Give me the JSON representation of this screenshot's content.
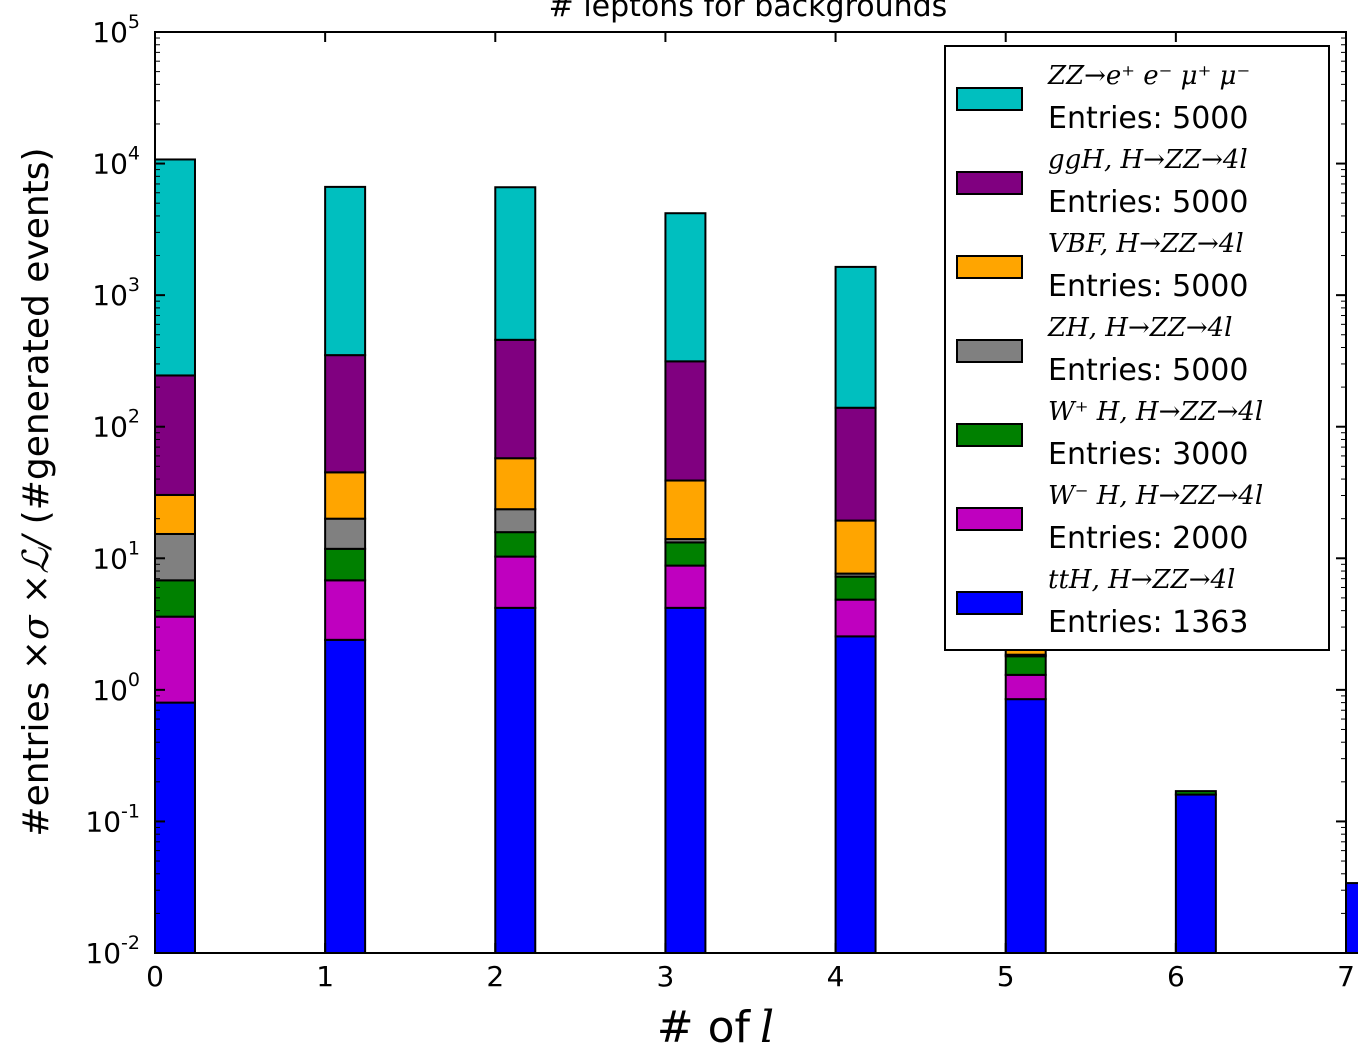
{
  "chart_data": {
    "type": "bar",
    "stacked": true,
    "title": "# leptons for backgrounds",
    "xlabel_prefix": "# of",
    "xlabel_symbol": "l",
    "ylabel_left": "#entries",
    "ylabel_middle": "×σ ×ℒ/",
    "ylabel_right": "(#generated events)",
    "yscale": "log",
    "ylim": [
      0.01,
      100000
    ],
    "xlim": [
      0,
      7
    ],
    "x_ticks": [
      "0",
      "1",
      "2",
      "3",
      "4",
      "5",
      "6",
      "7"
    ],
    "y_ticks": [
      {
        "base": "10",
        "exp": "5"
      },
      {
        "base": "10",
        "exp": "4"
      },
      {
        "base": "10",
        "exp": "3"
      },
      {
        "base": "10",
        "exp": "2"
      },
      {
        "base": "10",
        "exp": "1"
      },
      {
        "base": "10",
        "exp": "0"
      },
      {
        "base": "10",
        "exp": "-1"
      },
      {
        "base": "10",
        "exp": "-2"
      }
    ],
    "categories": [
      0,
      1,
      2,
      3,
      4,
      5,
      6,
      7
    ],
    "legend_position": "upper-right",
    "series": [
      {
        "name": "ttH, H→ZZ→4l",
        "entries": "Entries: 1363",
        "color": "#0000ff",
        "values": [
          0.8,
          2.4,
          4.2,
          4.2,
          2.55,
          0.85,
          0.16,
          0.034
        ]
      },
      {
        "name": "W⁻ H, H→ZZ→4l",
        "entries": "Entries: 2000",
        "color": "#bf00bf",
        "values": [
          2.8,
          4.4,
          6.1,
          4.6,
          2.3,
          0.45,
          0,
          0
        ]
      },
      {
        "name": "W⁺ H, H→ZZ→4l",
        "entries": "Entries: 3000",
        "color": "#008000",
        "values": [
          3.2,
          5.0,
          5.5,
          4.4,
          2.4,
          0.5,
          0.01,
          0
        ]
      },
      {
        "name": "ZH, H→ZZ→4l",
        "entries": "Entries: 5000",
        "color": "#808080",
        "values": [
          8.5,
          8.2,
          7.8,
          0.8,
          0.4,
          0.05,
          0,
          0
        ]
      },
      {
        "name": "VBF, H→ZZ→4l",
        "entries": "Entries: 5000",
        "color": "#ffa500",
        "values": [
          15.0,
          25.0,
          34.0,
          25.0,
          11.7,
          0.3,
          0,
          0
        ]
      },
      {
        "name": "ggH, H→ZZ→4l",
        "entries": "Entries: 5000",
        "color": "#800080",
        "values": [
          215,
          305,
          400,
          275,
          120,
          0,
          0,
          0
        ]
      },
      {
        "name": "ZZ→e⁺e⁻ μ⁺μ⁻",
        "entries": "Entries: 5000",
        "color": "#00bfbf",
        "values": [
          10500,
          6300,
          6150,
          3880,
          1500,
          0,
          0,
          0
        ]
      }
    ]
  },
  "legend": {
    "entries": [
      {
        "label": "ZZ→e⁺ e⁻ μ⁺ μ⁻",
        "count": "Entries: 5000",
        "color": "#00bfbf"
      },
      {
        "label": "ggH, H→ZZ→4l",
        "count": "Entries: 5000",
        "color": "#800080"
      },
      {
        "label": "VBF, H→ZZ→4l",
        "count": "Entries: 5000",
        "color": "#ffa500"
      },
      {
        "label": "ZH, H→ZZ→4l",
        "count": "Entries: 5000",
        "color": "#808080"
      },
      {
        "label": "W⁺ H, H→ZZ→4l",
        "count": "Entries: 3000",
        "color": "#008000"
      },
      {
        "label": "W⁻ H, H→ZZ→4l",
        "count": "Entries: 2000",
        "color": "#bf00bf"
      },
      {
        "label": "ttH, H→ZZ→4l",
        "count": "Entries: 1363",
        "color": "#0000ff"
      }
    ]
  }
}
